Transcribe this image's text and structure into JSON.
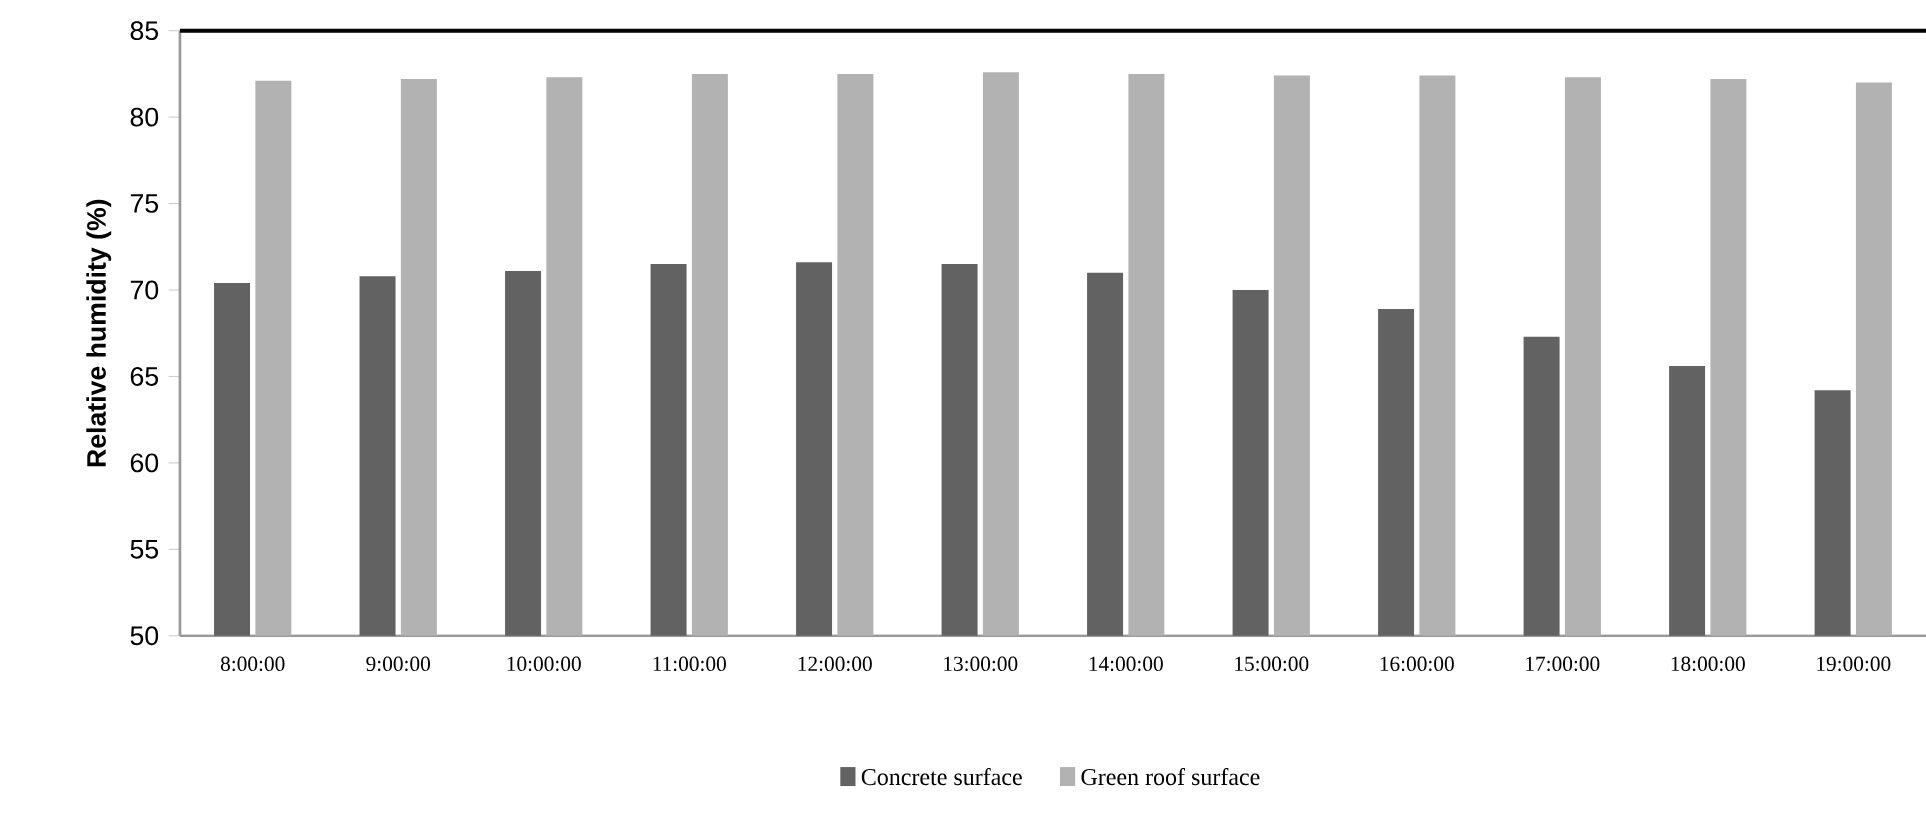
{
  "chart_data": {
    "type": "bar",
    "ylabel": "Relative humidity (%)",
    "categories": [
      "8:00:00",
      "9:00:00",
      "10:00:00",
      "11:00:00",
      "12:00:00",
      "13:00:00",
      "14:00:00",
      "15:00:00",
      "16:00:00",
      "17:00:00",
      "18:00:00",
      "19:00:00"
    ],
    "series": [
      {
        "name": "Concrete surface",
        "color": "#626262",
        "values": [
          70.4,
          70.8,
          71.1,
          71.5,
          71.6,
          71.5,
          71.0,
          70.0,
          68.9,
          67.3,
          65.6,
          64.2
        ]
      },
      {
        "name": "Green roof surface",
        "color": "#b2b2b2",
        "values": [
          82.1,
          82.2,
          82.3,
          82.5,
          82.5,
          82.6,
          82.5,
          82.4,
          82.4,
          82.3,
          82.2,
          82.0
        ]
      }
    ],
    "ylim": [
      50,
      85
    ],
    "yticks": [
      50,
      55,
      60,
      65,
      70,
      75,
      80,
      85
    ],
    "legend": "bottom"
  }
}
